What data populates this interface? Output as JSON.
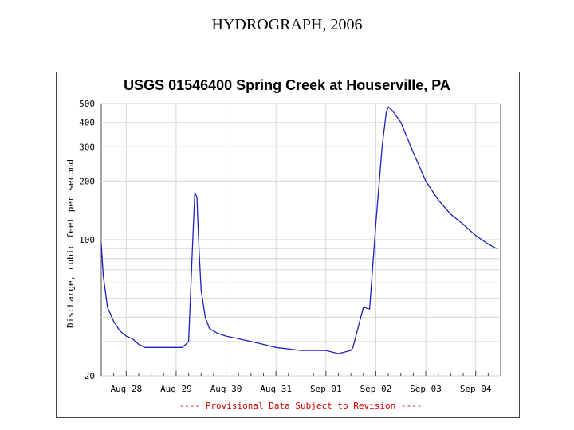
{
  "slide": {
    "title": "HYDROGRAPH, 2006"
  },
  "chart_data": {
    "type": "line",
    "title": "USGS 01546400 Spring Creek at Houserville, PA",
    "xlabel": "",
    "ylabel": "Discharge, cubic feet per second",
    "yscale": "log",
    "ylim": [
      20,
      500
    ],
    "y_ticks": [
      20,
      100,
      200,
      300,
      400,
      500
    ],
    "xlim": [
      "2006-08-27 12:00",
      "2006-09-04 12:00"
    ],
    "x_ticks": [
      "Aug 28",
      "Aug 29",
      "Aug 30",
      "Aug 31",
      "Sep 01",
      "Sep 02",
      "Sep 03",
      "Sep 04"
    ],
    "grid": true,
    "line_color": "#1f1fbf",
    "note": "---- Provisional Data Subject to Revision ----",
    "series": [
      {
        "x": [
          "2006-08-27 12:00",
          "2006-08-27 13:00",
          "2006-08-27 15:00",
          "2006-08-27 18:00",
          "2006-08-27 21:00",
          "2006-08-28 00:00",
          "2006-08-28 03:00",
          "2006-08-28 06:00",
          "2006-08-28 09:00",
          "2006-08-28 12:00",
          "2006-08-28 18:00",
          "2006-08-29 00:00",
          "2006-08-29 03:00",
          "2006-08-29 06:00",
          "2006-08-29 08:00",
          "2006-08-29 09:00",
          "2006-08-29 10:00",
          "2006-08-29 11:00",
          "2006-08-29 12:00",
          "2006-08-29 14:00",
          "2006-08-29 16:00",
          "2006-08-29 20:00",
          "2006-08-30 00:00",
          "2006-08-30 06:00",
          "2006-08-30 12:00",
          "2006-08-30 18:00",
          "2006-08-31 00:00",
          "2006-08-31 12:00",
          "2006-09-01 00:00",
          "2006-09-01 06:00",
          "2006-09-01 12:00",
          "2006-09-01 13:00",
          "2006-09-01 18:00",
          "2006-09-01 21:00",
          "2006-09-02 00:00",
          "2006-09-02 03:00",
          "2006-09-02 05:00",
          "2006-09-02 06:00",
          "2006-09-02 08:00",
          "2006-09-02 12:00",
          "2006-09-02 18:00",
          "2006-09-03 00:00",
          "2006-09-03 06:00",
          "2006-09-03 12:00",
          "2006-09-03 18:00",
          "2006-09-04 00:00",
          "2006-09-04 06:00",
          "2006-09-04 10:00"
        ],
        "y": [
          95,
          65,
          45,
          38,
          34,
          32,
          31,
          29,
          28,
          28,
          28,
          28,
          28,
          30,
          100,
          175,
          165,
          90,
          55,
          40,
          35,
          33,
          32,
          31,
          30,
          29,
          28,
          27,
          27,
          26,
          27,
          28,
          45,
          44,
          120,
          300,
          450,
          480,
          460,
          400,
          280,
          200,
          160,
          135,
          120,
          105,
          95,
          90
        ]
      }
    ]
  }
}
